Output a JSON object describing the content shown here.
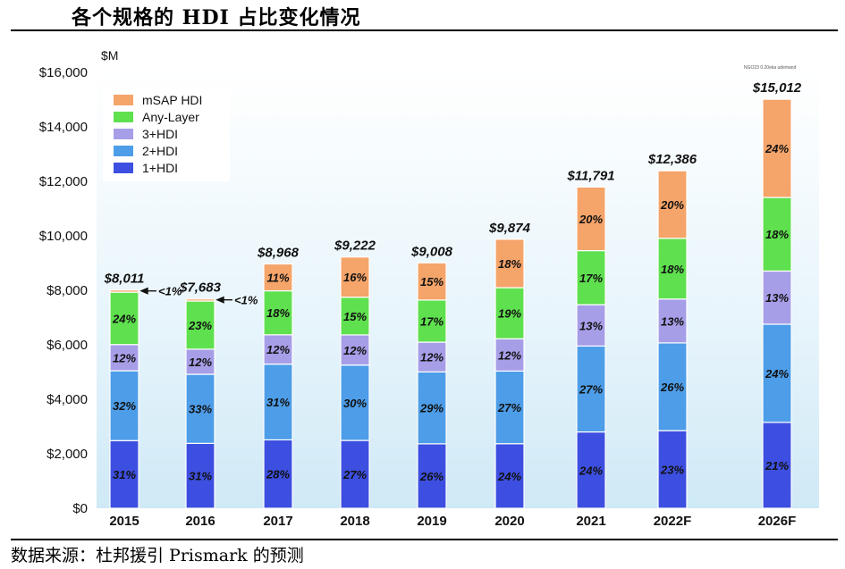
{
  "title": "各个规格的 HDI 占比变化情况",
  "source": "数据来源：杜邦援引 Prismark 的预测",
  "chart_data": {
    "type": "bar",
    "stacked": true,
    "unit_label": "$M",
    "ylim": [
      0,
      16000
    ],
    "yticks": [
      "$0",
      "$2,000",
      "$4,000",
      "$6,000",
      "$8,000",
      "$10,000",
      "$12,000",
      "$14,000",
      "$16,000"
    ],
    "ytick_values": [
      0,
      2000,
      4000,
      6000,
      8000,
      10000,
      12000,
      14000,
      16000
    ],
    "grid": false,
    "legend_position": "top-left",
    "categories": [
      "2015",
      "2016",
      "2017",
      "2018",
      "2019",
      "2020",
      "2021",
      "2022F",
      "2026F"
    ],
    "totals": [
      8011,
      7683,
      8968,
      9222,
      9008,
      9874,
      11791,
      12386,
      15012
    ],
    "total_labels": [
      "$8,011",
      "$7,683",
      "$8,968",
      "$9,222",
      "$9,008",
      "$9,874",
      "$11,791",
      "$12,386",
      "$15,012"
    ],
    "series": [
      {
        "name": "1+HDI",
        "color": "#3d4fe0",
        "shares": [
          31,
          31,
          28,
          27,
          26,
          24,
          24,
          23,
          21
        ],
        "labels": [
          "31%",
          "31%",
          "28%",
          "27%",
          "26%",
          "24%",
          "24%",
          "23%",
          "21%"
        ]
      },
      {
        "name": "2+HDI",
        "color": "#4d9de8",
        "shares": [
          32,
          33,
          31,
          30,
          29,
          27,
          27,
          26,
          24
        ],
        "labels": [
          "32%",
          "33%",
          "31%",
          "30%",
          "29%",
          "27%",
          "27%",
          "26%",
          "24%"
        ]
      },
      {
        "name": "3+HDI",
        "color": "#a79ee8",
        "shares": [
          12,
          12,
          12,
          12,
          12,
          12,
          13,
          13,
          13
        ],
        "labels": [
          "12%",
          "12%",
          "12%",
          "12%",
          "12%",
          "12%",
          "13%",
          "13%",
          "13%"
        ]
      },
      {
        "name": "Any-Layer",
        "color": "#5fe04f",
        "shares": [
          24,
          23,
          18,
          15,
          17,
          19,
          17,
          18,
          18
        ],
        "labels": [
          "24%",
          "23%",
          "18%",
          "15%",
          "17%",
          "19%",
          "17%",
          "18%",
          "18%"
        ]
      },
      {
        "name": "mSAP HDI",
        "color": "#f5a46a",
        "shares": [
          1,
          1,
          11,
          16,
          15,
          18,
          20,
          20,
          24
        ],
        "labels": [
          "<1%",
          "<1%",
          "11%",
          "16%",
          "15%",
          "18%",
          "20%",
          "20%",
          "24%"
        ]
      }
    ],
    "legend_order": [
      "mSAP HDI",
      "Any-Layer",
      "3+HDI",
      "2+HDI",
      "1+HDI"
    ],
    "watermark": "NGO23 0.20eka udemand"
  }
}
